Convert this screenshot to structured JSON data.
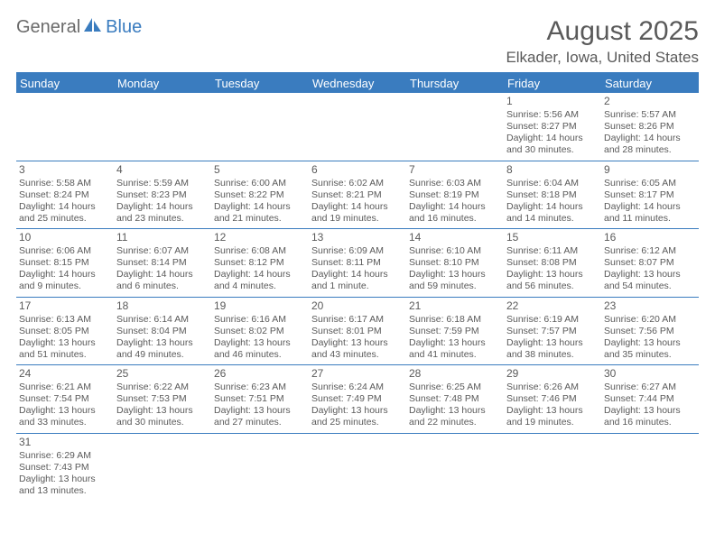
{
  "logo": {
    "text1": "General",
    "text2": "Blue"
  },
  "title": "August 2025",
  "location": "Elkader, Iowa, United States",
  "colors": {
    "header_bg": "#3a7cbf",
    "header_text": "#ffffff",
    "body_text": "#5a5a5a",
    "border": "#3a7cbf",
    "background": "#ffffff"
  },
  "typography": {
    "title_fontsize": 30,
    "location_fontsize": 17,
    "dow_fontsize": 13,
    "daynum_fontsize": 12,
    "cell_fontsize": 10.5
  },
  "dow": [
    "Sunday",
    "Monday",
    "Tuesday",
    "Wednesday",
    "Thursday",
    "Friday",
    "Saturday"
  ],
  "weeks": [
    [
      null,
      null,
      null,
      null,
      null,
      {
        "n": "1",
        "r1": "Sunrise: 5:56 AM",
        "r2": "Sunset: 8:27 PM",
        "r3": "Daylight: 14 hours",
        "r4": "and 30 minutes."
      },
      {
        "n": "2",
        "r1": "Sunrise: 5:57 AM",
        "r2": "Sunset: 8:26 PM",
        "r3": "Daylight: 14 hours",
        "r4": "and 28 minutes."
      }
    ],
    [
      {
        "n": "3",
        "r1": "Sunrise: 5:58 AM",
        "r2": "Sunset: 8:24 PM",
        "r3": "Daylight: 14 hours",
        "r4": "and 25 minutes."
      },
      {
        "n": "4",
        "r1": "Sunrise: 5:59 AM",
        "r2": "Sunset: 8:23 PM",
        "r3": "Daylight: 14 hours",
        "r4": "and 23 minutes."
      },
      {
        "n": "5",
        "r1": "Sunrise: 6:00 AM",
        "r2": "Sunset: 8:22 PM",
        "r3": "Daylight: 14 hours",
        "r4": "and 21 minutes."
      },
      {
        "n": "6",
        "r1": "Sunrise: 6:02 AM",
        "r2": "Sunset: 8:21 PM",
        "r3": "Daylight: 14 hours",
        "r4": "and 19 minutes."
      },
      {
        "n": "7",
        "r1": "Sunrise: 6:03 AM",
        "r2": "Sunset: 8:19 PM",
        "r3": "Daylight: 14 hours",
        "r4": "and 16 minutes."
      },
      {
        "n": "8",
        "r1": "Sunrise: 6:04 AM",
        "r2": "Sunset: 8:18 PM",
        "r3": "Daylight: 14 hours",
        "r4": "and 14 minutes."
      },
      {
        "n": "9",
        "r1": "Sunrise: 6:05 AM",
        "r2": "Sunset: 8:17 PM",
        "r3": "Daylight: 14 hours",
        "r4": "and 11 minutes."
      }
    ],
    [
      {
        "n": "10",
        "r1": "Sunrise: 6:06 AM",
        "r2": "Sunset: 8:15 PM",
        "r3": "Daylight: 14 hours",
        "r4": "and 9 minutes."
      },
      {
        "n": "11",
        "r1": "Sunrise: 6:07 AM",
        "r2": "Sunset: 8:14 PM",
        "r3": "Daylight: 14 hours",
        "r4": "and 6 minutes."
      },
      {
        "n": "12",
        "r1": "Sunrise: 6:08 AM",
        "r2": "Sunset: 8:12 PM",
        "r3": "Daylight: 14 hours",
        "r4": "and 4 minutes."
      },
      {
        "n": "13",
        "r1": "Sunrise: 6:09 AM",
        "r2": "Sunset: 8:11 PM",
        "r3": "Daylight: 14 hours",
        "r4": "and 1 minute."
      },
      {
        "n": "14",
        "r1": "Sunrise: 6:10 AM",
        "r2": "Sunset: 8:10 PM",
        "r3": "Daylight: 13 hours",
        "r4": "and 59 minutes."
      },
      {
        "n": "15",
        "r1": "Sunrise: 6:11 AM",
        "r2": "Sunset: 8:08 PM",
        "r3": "Daylight: 13 hours",
        "r4": "and 56 minutes."
      },
      {
        "n": "16",
        "r1": "Sunrise: 6:12 AM",
        "r2": "Sunset: 8:07 PM",
        "r3": "Daylight: 13 hours",
        "r4": "and 54 minutes."
      }
    ],
    [
      {
        "n": "17",
        "r1": "Sunrise: 6:13 AM",
        "r2": "Sunset: 8:05 PM",
        "r3": "Daylight: 13 hours",
        "r4": "and 51 minutes."
      },
      {
        "n": "18",
        "r1": "Sunrise: 6:14 AM",
        "r2": "Sunset: 8:04 PM",
        "r3": "Daylight: 13 hours",
        "r4": "and 49 minutes."
      },
      {
        "n": "19",
        "r1": "Sunrise: 6:16 AM",
        "r2": "Sunset: 8:02 PM",
        "r3": "Daylight: 13 hours",
        "r4": "and 46 minutes."
      },
      {
        "n": "20",
        "r1": "Sunrise: 6:17 AM",
        "r2": "Sunset: 8:01 PM",
        "r3": "Daylight: 13 hours",
        "r4": "and 43 minutes."
      },
      {
        "n": "21",
        "r1": "Sunrise: 6:18 AM",
        "r2": "Sunset: 7:59 PM",
        "r3": "Daylight: 13 hours",
        "r4": "and 41 minutes."
      },
      {
        "n": "22",
        "r1": "Sunrise: 6:19 AM",
        "r2": "Sunset: 7:57 PM",
        "r3": "Daylight: 13 hours",
        "r4": "and 38 minutes."
      },
      {
        "n": "23",
        "r1": "Sunrise: 6:20 AM",
        "r2": "Sunset: 7:56 PM",
        "r3": "Daylight: 13 hours",
        "r4": "and 35 minutes."
      }
    ],
    [
      {
        "n": "24",
        "r1": "Sunrise: 6:21 AM",
        "r2": "Sunset: 7:54 PM",
        "r3": "Daylight: 13 hours",
        "r4": "and 33 minutes."
      },
      {
        "n": "25",
        "r1": "Sunrise: 6:22 AM",
        "r2": "Sunset: 7:53 PM",
        "r3": "Daylight: 13 hours",
        "r4": "and 30 minutes."
      },
      {
        "n": "26",
        "r1": "Sunrise: 6:23 AM",
        "r2": "Sunset: 7:51 PM",
        "r3": "Daylight: 13 hours",
        "r4": "and 27 minutes."
      },
      {
        "n": "27",
        "r1": "Sunrise: 6:24 AM",
        "r2": "Sunset: 7:49 PM",
        "r3": "Daylight: 13 hours",
        "r4": "and 25 minutes."
      },
      {
        "n": "28",
        "r1": "Sunrise: 6:25 AM",
        "r2": "Sunset: 7:48 PM",
        "r3": "Daylight: 13 hours",
        "r4": "and 22 minutes."
      },
      {
        "n": "29",
        "r1": "Sunrise: 6:26 AM",
        "r2": "Sunset: 7:46 PM",
        "r3": "Daylight: 13 hours",
        "r4": "and 19 minutes."
      },
      {
        "n": "30",
        "r1": "Sunrise: 6:27 AM",
        "r2": "Sunset: 7:44 PM",
        "r3": "Daylight: 13 hours",
        "r4": "and 16 minutes."
      }
    ],
    [
      {
        "n": "31",
        "r1": "Sunrise: 6:29 AM",
        "r2": "Sunset: 7:43 PM",
        "r3": "Daylight: 13 hours",
        "r4": "and 13 minutes."
      },
      null,
      null,
      null,
      null,
      null,
      null
    ]
  ]
}
